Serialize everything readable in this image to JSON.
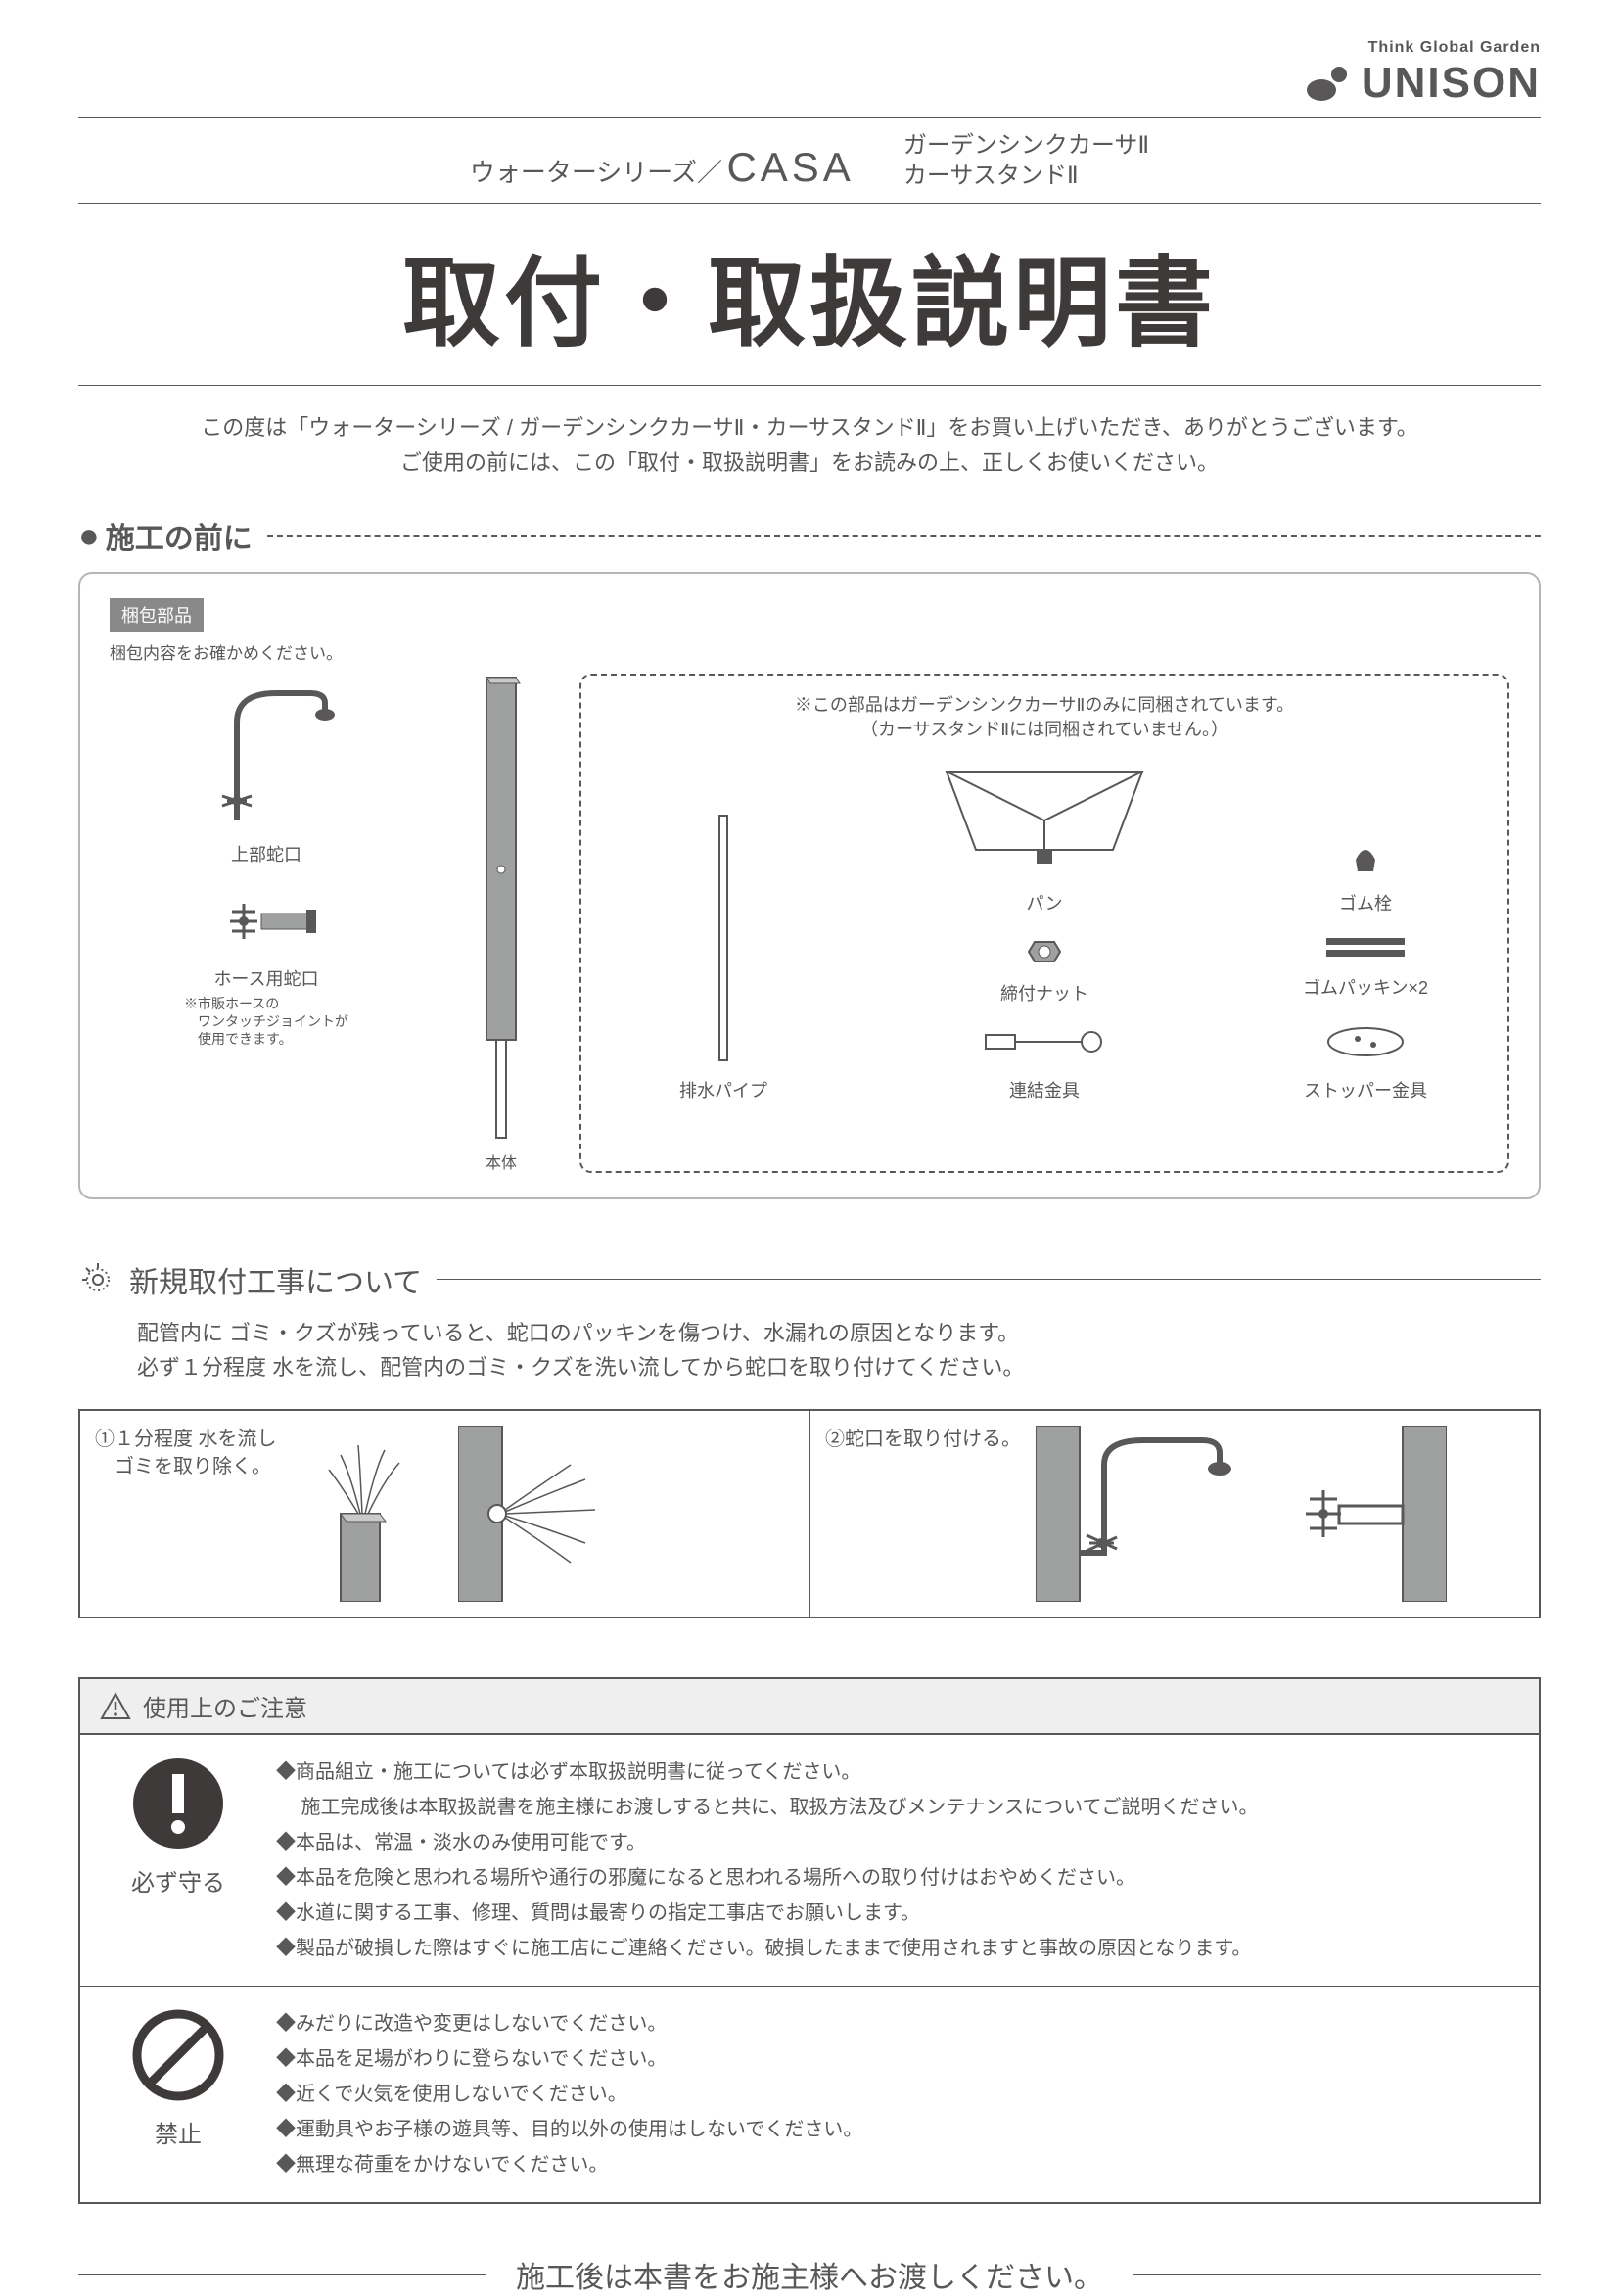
{
  "logo": {
    "tagline": "Think Global Garden",
    "brand": "UNISON"
  },
  "header": {
    "series": "ウォーターシリーズ／",
    "casa": "CASA",
    "product1": "ガーデンシンクカーサⅡ",
    "product2": "カーサスタンドⅡ"
  },
  "main_title": "取付・取扱説明書",
  "intro_line1": "この度は「ウォーターシリーズ / ガーデンシンクカーサⅡ・カーサスタンドⅡ」をお買い上げいただき、ありがとうございます。",
  "intro_line2": "ご使用の前には、この「取付・取扱説明書」をお読みの上、正しくお使いください。",
  "section1": {
    "title": "施工の前に",
    "badge": "梱包部品",
    "badge_sub": "梱包内容をお確かめください。",
    "parts": {
      "top_faucet": "上部蛇口",
      "hose_faucet": "ホース用蛇口",
      "hose_note1": "※市販ホースの",
      "hose_note2": "　ワンタッチジョイントが",
      "hose_note3": "　使用できます。",
      "body": "本体",
      "group_note1": "※この部品はガーデンシンクカーサⅡのみに同梱されています。",
      "group_note2": "（カーサスタンドⅡには同梱されていません。）",
      "drain_pipe": "排水パイプ",
      "nut": "締付ナット",
      "connector": "連結金具",
      "pan": "パン",
      "rubber_plug": "ゴム栓",
      "rubber_packing": "ゴムパッキン×2",
      "stopper": "ストッパー金具"
    }
  },
  "section2": {
    "title": "新規取付工事について",
    "text1": "配管内に ゴミ・クズが残っていると、蛇口のパッキンを傷つけ、水漏れの原因となります。",
    "text2": "必ず１分程度 水を流し、配管内のゴミ・クズを洗い流してから蛇口を取り付けてください。",
    "step1": "①１分程度 水を流し\n　ゴミを取り除く。",
    "step2": "②蛇口を取り付ける。"
  },
  "caution": {
    "header": "使用上のご注意",
    "must_label": "必ず守る",
    "must_items": [
      "◆商品組立・施工については必ず本取扱説明書に従ってください。",
      "　 施工完成後は本取扱説書を施主様にお渡しすると共に、取扱方法及びメンテナンスについてご説明ください。",
      "◆本品は、常温・淡水のみ使用可能です。",
      "◆本品を危険と思われる場所や通行の邪魔になると思われる場所への取り付けはおやめください。",
      "◆水道に関する工事、修理、質問は最寄りの指定工事店でお願いします。",
      "◆製品が破損した際はすぐに施工店にご連絡ください。破損したままで使用されますと事故の原因となります。"
    ],
    "forbid_label": "禁止",
    "forbid_items": [
      "◆みだりに改造や変更はしないでください。",
      "◆本品を足場がわりに登らないでください。",
      "◆近くで火気を使用しないでください。",
      "◆運動具やお子様の遊具等、目的以外の使用はしないでください。",
      "◆無理な荷重をかけないでください。"
    ]
  },
  "footer": "施工後は本書をお施主様へお渡しください。",
  "colors": {
    "text": "#595757",
    "title": "#3e3a39",
    "panel_border": "#b5b6b6",
    "badge_bg": "#898989",
    "caution_bg": "#efefef",
    "part_gray": "#9fa0a0"
  }
}
